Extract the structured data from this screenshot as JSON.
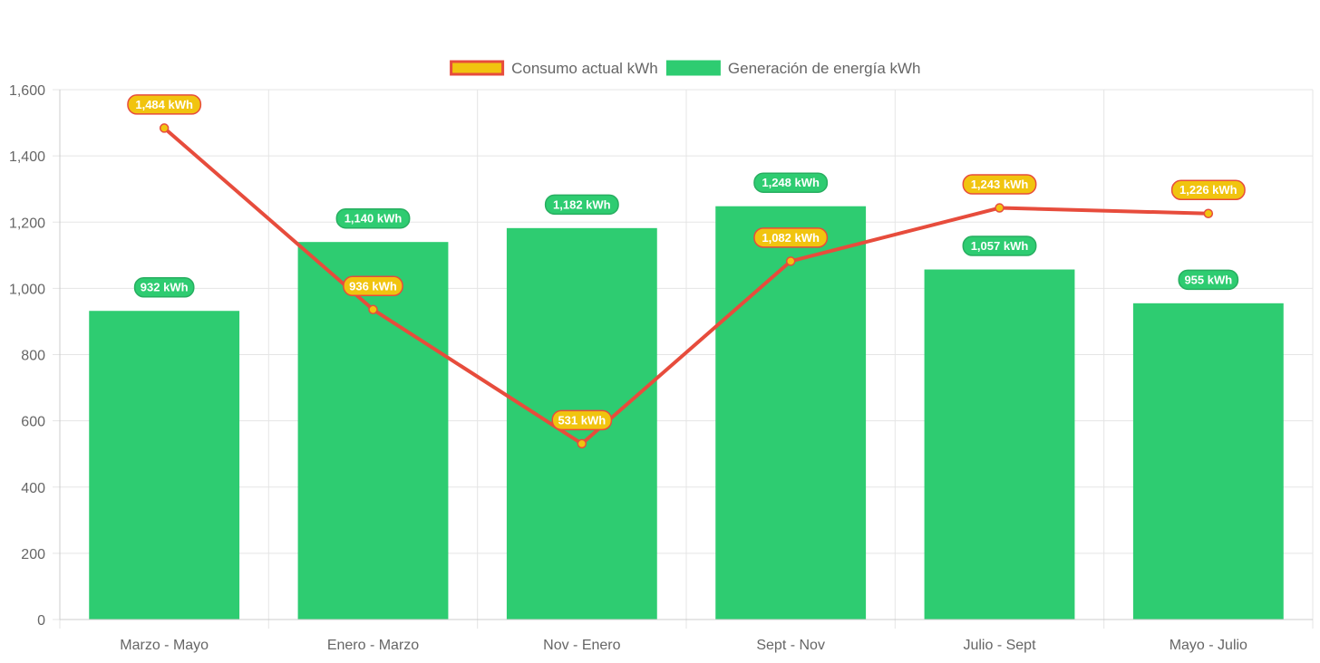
{
  "chart_data": {
    "type": "bar",
    "title": "",
    "xlabel": "",
    "ylabel": "",
    "categories": [
      "Marzo - Mayo",
      "Enero - Marzo",
      "Nov - Enero",
      "Sept - Nov",
      "Julio - Sept",
      "Mayo - Julio"
    ],
    "ylim": [
      0,
      1600
    ],
    "yticks": [
      0,
      200,
      400,
      600,
      800,
      1000,
      1200,
      1400,
      1600
    ],
    "ytick_labels": [
      "0",
      "200",
      "400",
      "600",
      "800",
      "1,000",
      "1,200",
      "1,400",
      "1,600"
    ],
    "grid": true,
    "legend_position": "top-center",
    "series": [
      {
        "name": "Consumo actual kWh",
        "type": "line",
        "values": [
          1484,
          936,
          531,
          1082,
          1243,
          1226
        ],
        "labels": [
          "1,484 kWh",
          "936 kWh",
          "531 kWh",
          "1,082 kWh",
          "1,243 kWh",
          "1,226 kWh"
        ],
        "line_color": "#e74c3c",
        "fill_color": "#f1c40f"
      },
      {
        "name": "Generación de energía kWh",
        "type": "bar",
        "values": [
          932,
          1140,
          1182,
          1248,
          1057,
          955
        ],
        "labels": [
          "932 kWh",
          "1,140 kWh",
          "1,182 kWh",
          "1,248 kWh",
          "1,057 kWh",
          "955 kWh"
        ],
        "color": "#2ecc71",
        "border_color": "#27ae60"
      }
    ]
  }
}
